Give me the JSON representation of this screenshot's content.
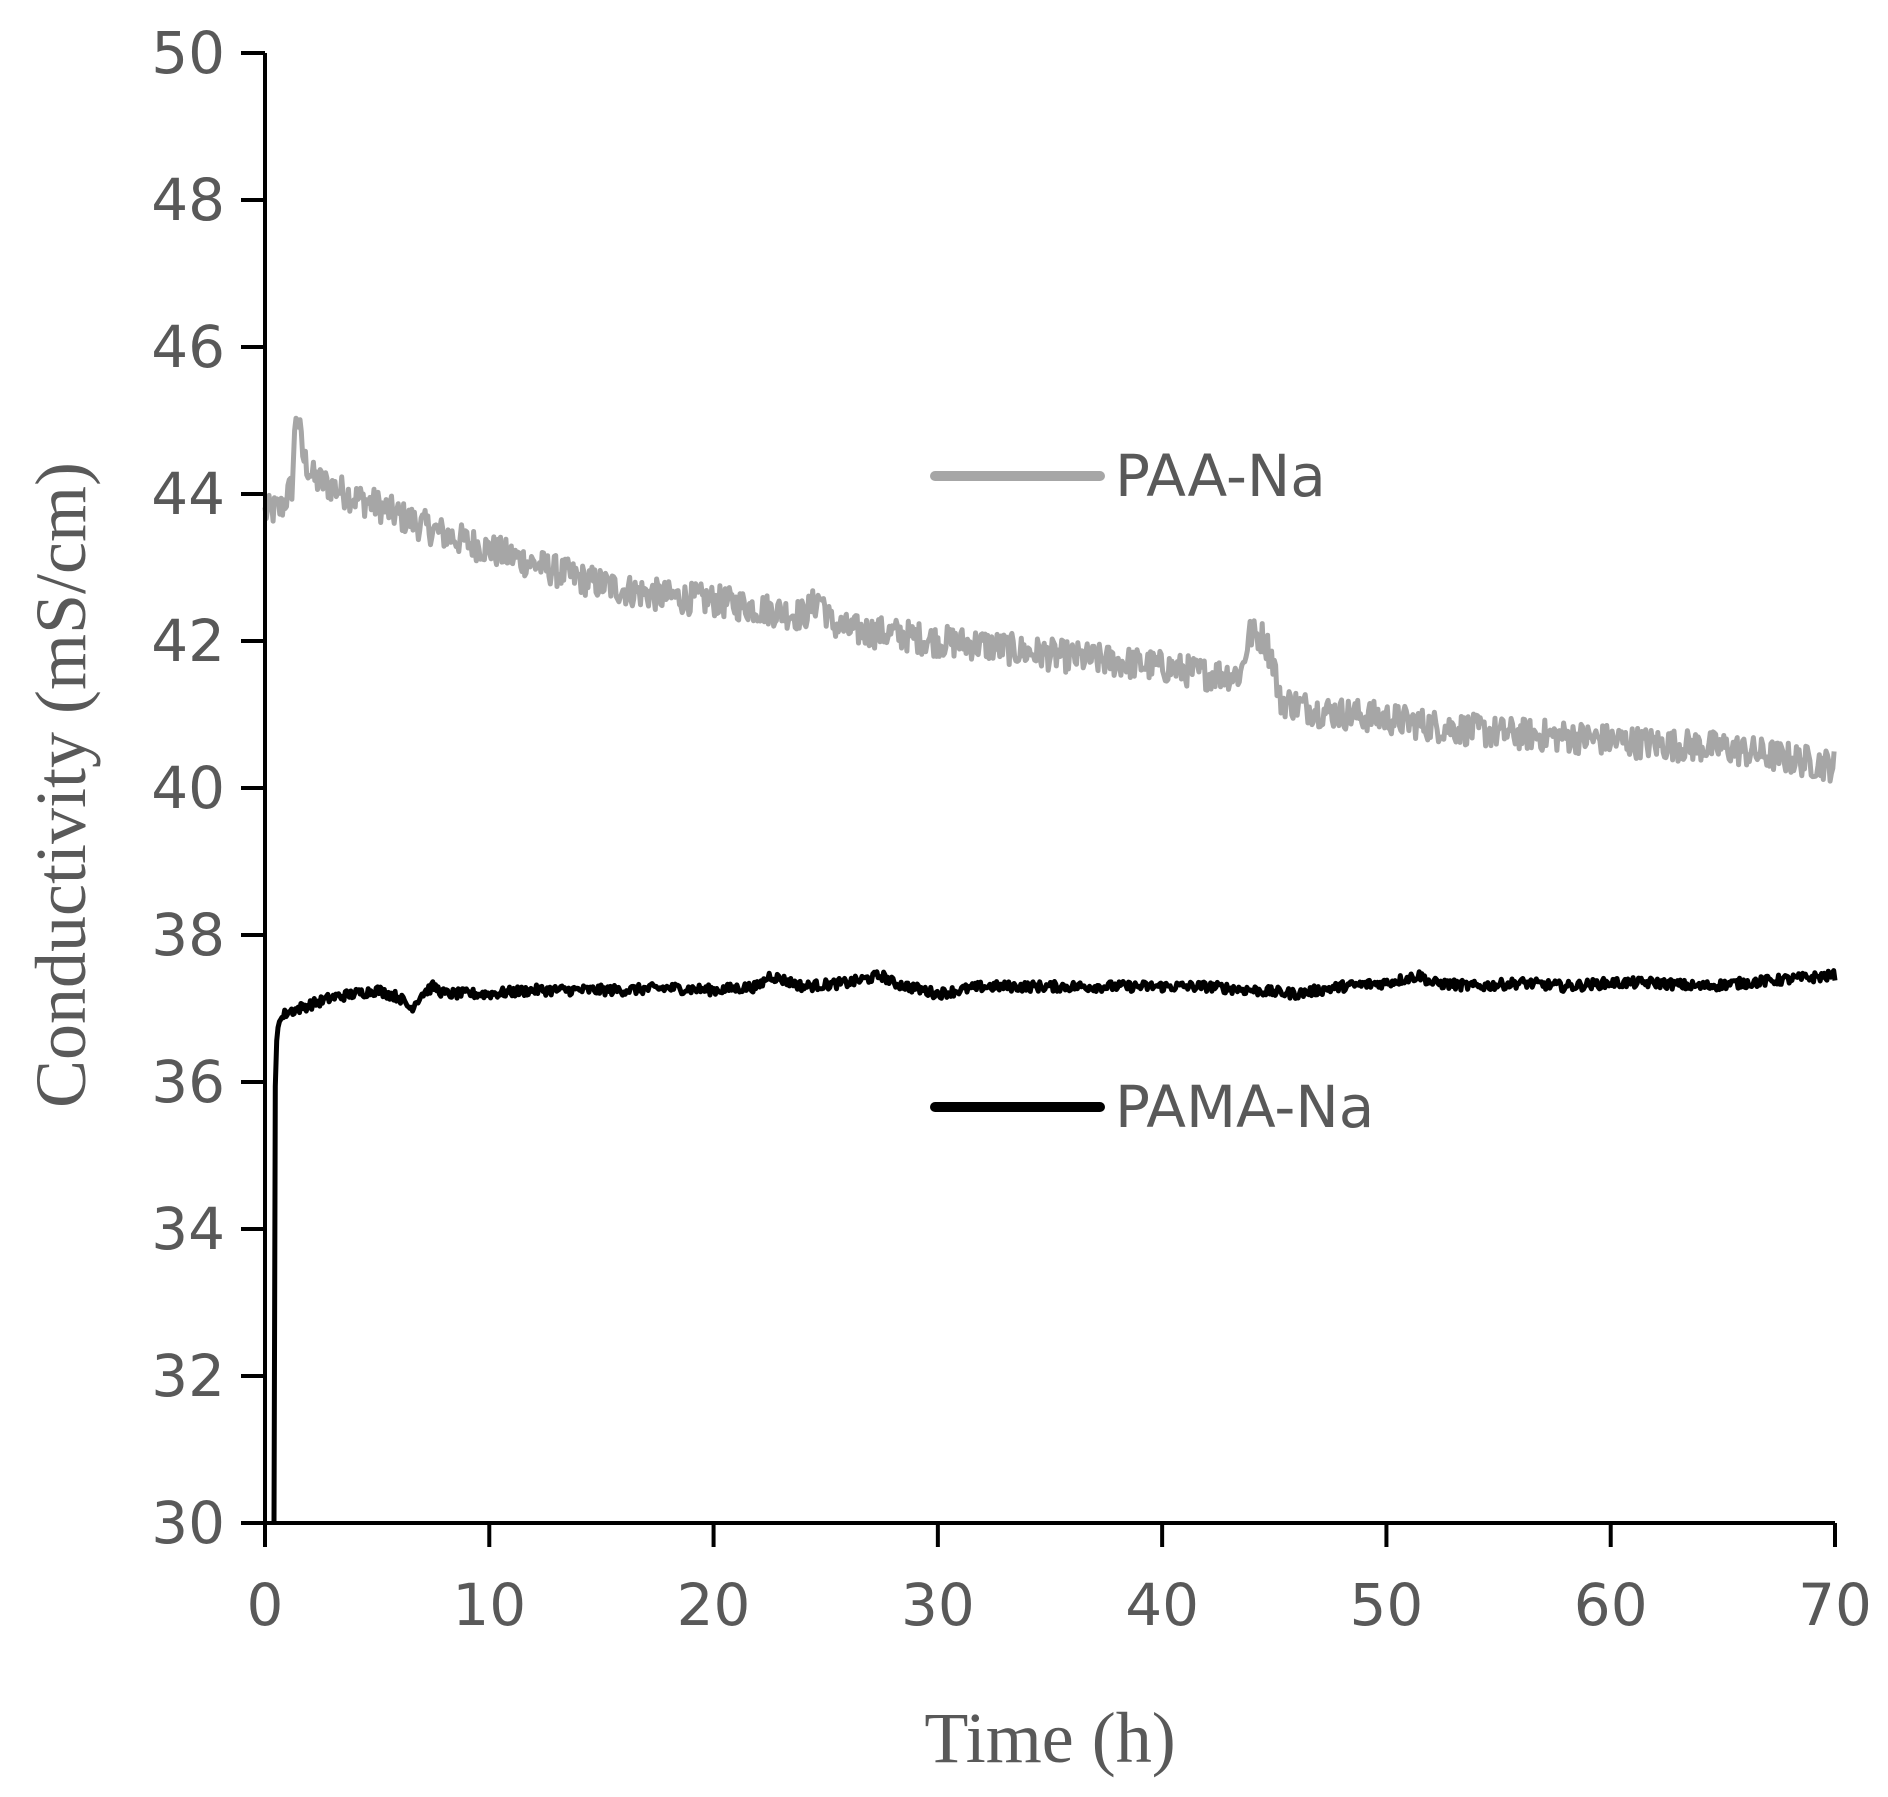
{
  "chart_data": {
    "type": "line",
    "title": "",
    "xlabel": "Time (h)",
    "ylabel": "Conductivity (mS/cm)",
    "xlim": [
      0,
      70
    ],
    "ylim": [
      30,
      50
    ],
    "xticks": [
      0,
      10,
      20,
      30,
      40,
      50,
      60,
      70
    ],
    "yticks": [
      30,
      32,
      34,
      36,
      38,
      40,
      42,
      44,
      46,
      48,
      50
    ],
    "grid": false,
    "legend_position": "inside-right",
    "series": [
      {
        "name": "PAA-Na",
        "color": "#a6a6a6",
        "noise": 0.22,
        "x": [
          0,
          0.7,
          1.2,
          1.4,
          1.7,
          2.2,
          3,
          4,
          5,
          6,
          8,
          10,
          12,
          14,
          16,
          18,
          20,
          22,
          24,
          24.8,
          25.2,
          26,
          28,
          30,
          32,
          34,
          36,
          38,
          40,
          42,
          43.5,
          43.9,
          44.5,
          45,
          45.2,
          47,
          50,
          52,
          55,
          58,
          60,
          62,
          65,
          68,
          70
        ],
        "y": [
          43.75,
          43.8,
          44.1,
          45.2,
          44.5,
          44.2,
          44.1,
          43.95,
          43.85,
          43.7,
          43.45,
          43.25,
          43.05,
          42.85,
          42.7,
          42.6,
          42.55,
          42.45,
          42.35,
          42.6,
          42.25,
          42.15,
          42.1,
          42.0,
          41.95,
          41.85,
          41.78,
          41.72,
          41.65,
          41.55,
          41.55,
          42.1,
          42.05,
          41.7,
          41.2,
          41.05,
          40.95,
          40.85,
          40.75,
          40.7,
          40.65,
          40.6,
          40.55,
          40.4,
          40.3
        ]
      },
      {
        "name": "PAMA-Na",
        "color": "#000000",
        "noise": 0.07,
        "x": [
          0.4,
          0.45,
          0.5,
          0.6,
          0.8,
          1,
          1.5,
          2,
          3,
          4,
          5,
          6,
          6.5,
          7,
          7.5,
          8,
          10,
          12,
          14,
          16,
          18,
          20,
          22,
          22.5,
          24,
          26,
          27.5,
          28,
          30,
          32,
          34,
          36,
          38,
          40,
          42,
          44,
          46,
          48,
          50,
          51.5,
          52,
          54,
          56,
          58,
          60,
          62,
          64,
          66,
          68,
          70
        ],
        "y": [
          30.0,
          35.8,
          36.5,
          36.8,
          36.9,
          36.95,
          37.0,
          37.05,
          37.15,
          37.2,
          37.25,
          37.15,
          37.0,
          37.2,
          37.3,
          37.2,
          37.2,
          37.25,
          37.25,
          37.25,
          37.28,
          37.25,
          37.3,
          37.45,
          37.3,
          37.35,
          37.45,
          37.35,
          37.2,
          37.3,
          37.3,
          37.3,
          37.3,
          37.3,
          37.3,
          37.25,
          37.2,
          37.3,
          37.35,
          37.45,
          37.35,
          37.3,
          37.35,
          37.3,
          37.35,
          37.35,
          37.3,
          37.35,
          37.4,
          37.45
        ]
      }
    ]
  }
}
